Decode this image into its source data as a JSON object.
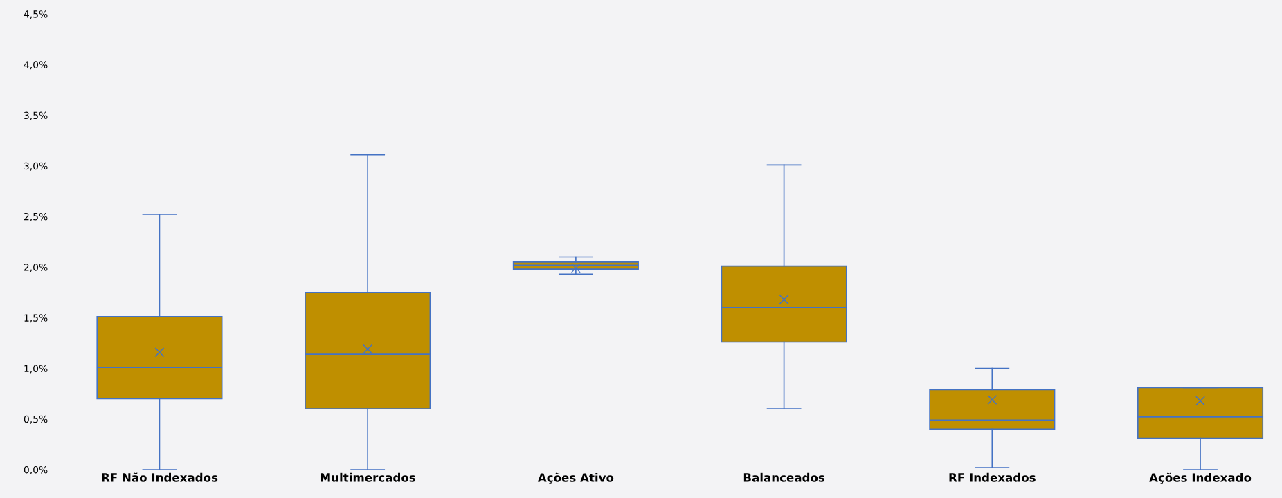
{
  "chart_data": {
    "type": "box",
    "categories": [
      "RF Não Indexados",
      "Multimercados",
      "Ações Ativo",
      "Balanceados",
      "RF Indexados",
      "Ações Indexado"
    ],
    "boxes": [
      {
        "low": 0.0,
        "q1": 0.7,
        "median": 1.01,
        "q3": 1.51,
        "high": 2.52,
        "mean": 1.16
      },
      {
        "low": 0.0,
        "q1": 0.6,
        "median": 1.14,
        "q3": 1.75,
        "high": 3.11,
        "mean": 1.19
      },
      {
        "low": 1.93,
        "q1": 1.98,
        "median": 2.02,
        "q3": 2.05,
        "high": 2.1,
        "mean": 1.99
      },
      {
        "low": 0.6,
        "q1": 1.26,
        "median": 1.6,
        "q3": 2.01,
        "high": 3.01,
        "mean": 1.68
      },
      {
        "low": 0.02,
        "q1": 0.4,
        "median": 0.49,
        "q3": 0.79,
        "high": 1.0,
        "mean": 0.69
      },
      {
        "low": 0.0,
        "q1": 0.31,
        "median": 0.52,
        "q3": 0.81,
        "high": 0.81,
        "mean": 0.68
      }
    ],
    "color": "#bf8f00",
    "marker": "cross",
    "ylim": [
      0,
      4.5
    ],
    "yticks": [
      {
        "value": 0,
        "label": "0,0%"
      },
      {
        "value": 0.5,
        "label": "0,5%"
      },
      {
        "value": 1,
        "label": "1,0%"
      },
      {
        "value": 1.5,
        "label": "1,5%"
      },
      {
        "value": 2,
        "label": "2,0%"
      },
      {
        "value": 2.5,
        "label": "2,5%"
      },
      {
        "value": 3,
        "label": "3,0%"
      },
      {
        "value": 3.5,
        "label": "3,5%"
      },
      {
        "value": 4,
        "label": "4,0%"
      },
      {
        "value": 4.5,
        "label": "4,5%"
      }
    ],
    "grid": false,
    "legend": false
  }
}
